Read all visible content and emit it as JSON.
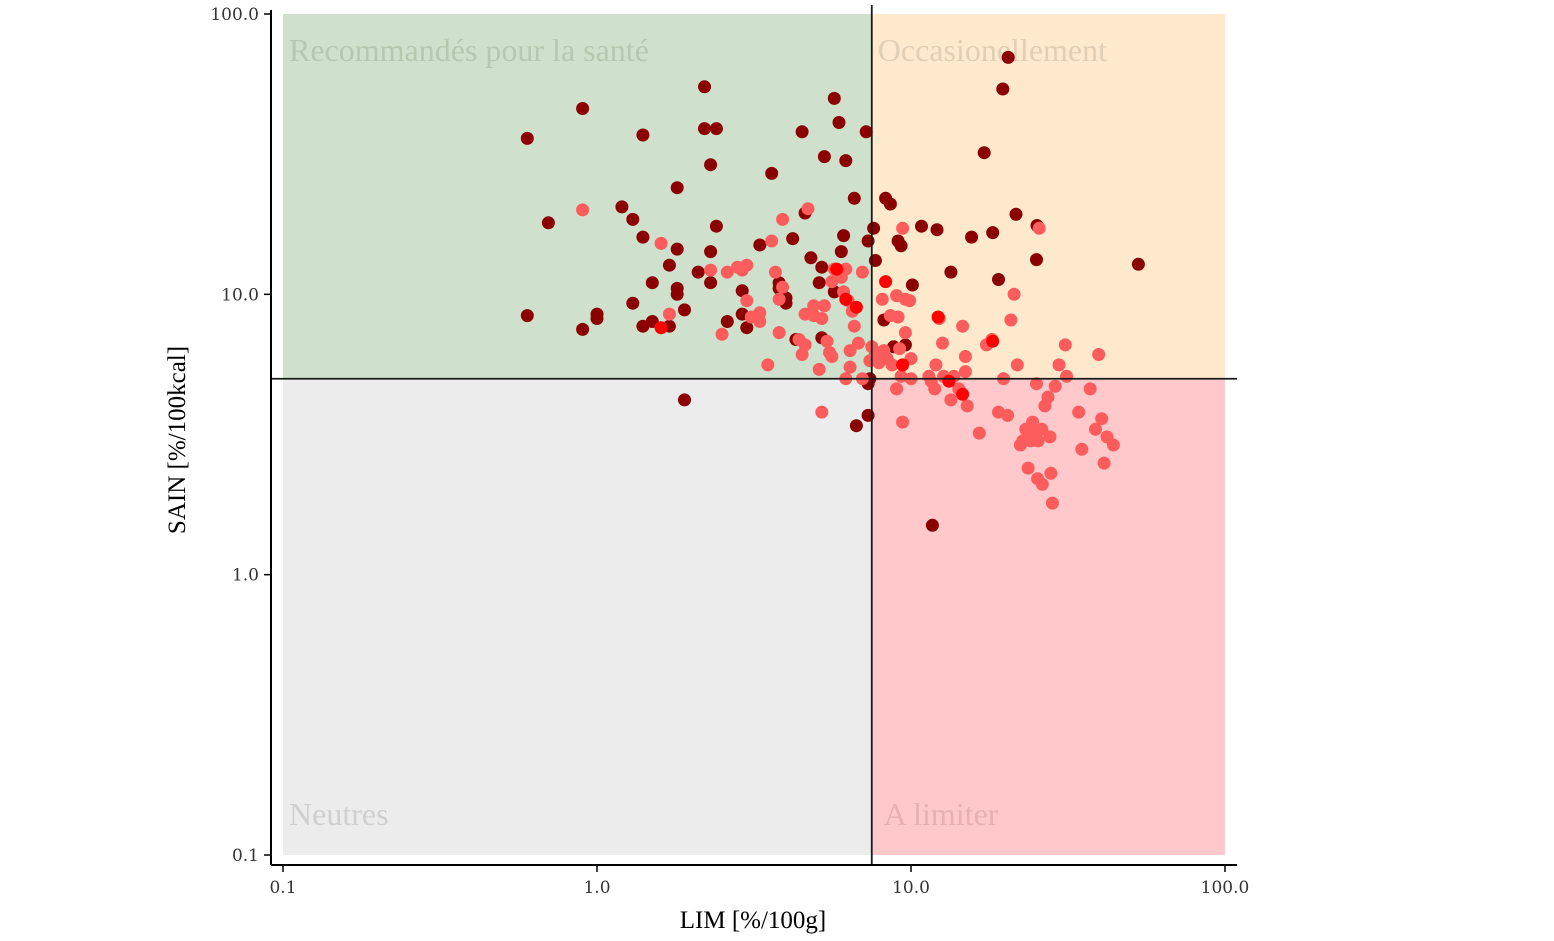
{
  "chart_data": {
    "type": "scatter",
    "xlabel": "LIM [%/100g]",
    "ylabel": "SAIN [%/100kcal]",
    "x_scale": "log",
    "y_scale": "log",
    "xlim": [
      0.1,
      100
    ],
    "ylim": [
      0.1,
      100
    ],
    "x_ticks": [
      "0.1",
      "1.0",
      "10.0",
      "100.0"
    ],
    "y_ticks": [
      "0.1",
      "1.0",
      "10.0",
      "100.0"
    ],
    "x_threshold": 7.5,
    "y_threshold": 5.0,
    "grid": false,
    "legend": "none",
    "quadrants": [
      {
        "label": "Recommandés pour la santé",
        "color": "#cfe1cc",
        "label_color": "#b5c9b1",
        "x_range": [
          0.1,
          7.5
        ],
        "y_range": [
          5.0,
          100
        ]
      },
      {
        "label": "Occasionellement",
        "color": "#ffe9cc",
        "label_color": "#e0cfb5",
        "x_range": [
          7.5,
          100
        ],
        "y_range": [
          5.0,
          100
        ]
      },
      {
        "label": "Neutres",
        "color": "#ececec",
        "label_color": "#cfcfcf",
        "x_range": [
          0.1,
          7.5
        ],
        "y_range": [
          0.1,
          5.0
        ]
      },
      {
        "label": "A limiter",
        "color": "#ffc9cb",
        "label_color": "#e8b0b0",
        "x_range": [
          7.5,
          100
        ],
        "y_range": [
          0.1,
          5.0
        ]
      }
    ],
    "series": [
      {
        "color": "#8b0000",
        "points": [
          [
            0.6,
            36
          ],
          [
            0.9,
            46
          ],
          [
            0.7,
            18
          ],
          [
            0.6,
            8.4
          ],
          [
            0.9,
            7.5
          ],
          [
            1.0,
            8.5
          ],
          [
            1.0,
            8.2
          ],
          [
            1.4,
            37
          ],
          [
            1.2,
            20.5
          ],
          [
            1.3,
            18.5
          ],
          [
            1.4,
            16
          ],
          [
            1.3,
            9.3
          ],
          [
            1.4,
            7.7
          ],
          [
            1.5,
            8.0
          ],
          [
            1.5,
            11
          ],
          [
            1.7,
            12.7
          ],
          [
            1.8,
            10.5
          ],
          [
            1.8,
            10
          ],
          [
            1.8,
            14.5
          ],
          [
            1.8,
            24
          ],
          [
            1.7,
            7.7
          ],
          [
            1.9,
            8.8
          ],
          [
            1.9,
            4.2
          ],
          [
            2.2,
            55
          ],
          [
            2.2,
            39
          ],
          [
            2.4,
            39
          ],
          [
            2.3,
            29
          ],
          [
            2.4,
            17.5
          ],
          [
            2.1,
            12
          ],
          [
            2.3,
            11
          ],
          [
            2.3,
            14.2
          ],
          [
            2.6,
            8.0
          ],
          [
            2.9,
            10.3
          ],
          [
            2.9,
            8.5
          ],
          [
            3.0,
            7.6
          ],
          [
            3.3,
            15
          ],
          [
            3.6,
            27
          ],
          [
            3.8,
            11
          ],
          [
            3.8,
            10.5
          ],
          [
            4.0,
            9.7
          ],
          [
            4.0,
            9.3
          ],
          [
            4.2,
            15.8
          ],
          [
            4.3,
            6.9
          ],
          [
            4.5,
            38
          ],
          [
            4.6,
            19.5
          ],
          [
            4.8,
            13.5
          ],
          [
            5.1,
            11
          ],
          [
            5.2,
            12.5
          ],
          [
            5.3,
            31
          ],
          [
            5.2,
            7
          ],
          [
            5.7,
            50
          ],
          [
            5.9,
            41
          ],
          [
            6.1,
            16.2
          ],
          [
            6.0,
            14.2
          ],
          [
            6.2,
            30
          ],
          [
            5.7,
            10.2
          ],
          [
            6.6,
            22
          ],
          [
            7.2,
            38
          ],
          [
            7.6,
            17.2
          ],
          [
            7.3,
            15.5
          ],
          [
            7.7,
            13.2
          ],
          [
            7.4,
            5.0
          ],
          [
            7.3,
            4.8
          ],
          [
            7.3,
            3.7
          ],
          [
            6.7,
            3.4
          ],
          [
            8.3,
            22
          ],
          [
            8.6,
            21
          ],
          [
            8.2,
            8.1
          ],
          [
            9.1,
            15.5
          ],
          [
            9.3,
            14.9
          ],
          [
            10.1,
            10.8
          ],
          [
            10.8,
            17.5
          ],
          [
            12.1,
            17
          ],
          [
            13.4,
            12
          ],
          [
            15.6,
            16
          ],
          [
            17.1,
            32
          ],
          [
            18.2,
            16.6
          ],
          [
            19.0,
            11.3
          ],
          [
            19.6,
            54
          ],
          [
            20.4,
            70
          ],
          [
            21.6,
            19.3
          ],
          [
            25.2,
            17.6
          ],
          [
            25.1,
            13.3
          ],
          [
            53.0,
            12.8
          ],
          [
            8.8,
            6.5
          ],
          [
            9.6,
            6.6
          ],
          [
            11.7,
            1.5
          ]
        ]
      },
      {
        "color": "#fd5c5c",
        "points": [
          [
            0.9,
            20
          ],
          [
            1.6,
            15.2
          ],
          [
            1.6,
            7.6
          ],
          [
            1.7,
            8.5
          ],
          [
            2.3,
            12.2
          ],
          [
            2.6,
            12
          ],
          [
            2.5,
            7.2
          ],
          [
            2.8,
            12.5
          ],
          [
            2.9,
            12.2
          ],
          [
            3.0,
            12.7
          ],
          [
            3.0,
            9.5
          ],
          [
            3.1,
            8.3
          ],
          [
            3.3,
            8.0
          ],
          [
            3.3,
            8.6
          ],
          [
            3.5,
            5.6
          ],
          [
            3.7,
            12
          ],
          [
            3.8,
            9.6
          ],
          [
            3.9,
            10.6
          ],
          [
            3.6,
            15.5
          ],
          [
            3.8,
            7.3
          ],
          [
            3.9,
            18.5
          ],
          [
            4.4,
            6.9
          ],
          [
            4.5,
            6.1
          ],
          [
            4.6,
            6.6
          ],
          [
            4.6,
            8.5
          ],
          [
            4.9,
            8.4
          ],
          [
            4.7,
            20.2
          ],
          [
            4.9,
            9.1
          ],
          [
            5.1,
            5.4
          ],
          [
            5.2,
            3.8
          ],
          [
            5.2,
            8.2
          ],
          [
            5.3,
            9.1
          ],
          [
            5.5,
            6.2
          ],
          [
            5.6,
            6.0
          ],
          [
            5.4,
            6.8
          ],
          [
            5.6,
            11.1
          ],
          [
            5.7,
            12.3
          ],
          [
            6.0,
            11.5
          ],
          [
            6.1,
            10.2
          ],
          [
            6.3,
            9.5
          ],
          [
            6.2,
            12.3
          ],
          [
            6.5,
            8.7
          ],
          [
            6.4,
            6.3
          ],
          [
            6.2,
            5.0
          ],
          [
            6.4,
            5.5
          ],
          [
            6.6,
            7.7
          ],
          [
            6.8,
            6.7
          ],
          [
            7.0,
            12
          ],
          [
            7.0,
            5.0
          ],
          [
            7.5,
            6.5
          ],
          [
            7.4,
            5.8
          ],
          [
            7.7,
            6.2
          ],
          [
            7.9,
            5.7
          ],
          [
            8.1,
            9.6
          ],
          [
            8.2,
            6.3
          ],
          [
            8.4,
            5.9
          ],
          [
            8.6,
            8.4
          ],
          [
            8.7,
            5.6
          ],
          [
            9.0,
            9.9
          ],
          [
            9.1,
            8.3
          ],
          [
            9.2,
            6.4
          ],
          [
            9.3,
            5.1
          ],
          [
            9.4,
            17.2
          ],
          [
            9.6,
            9.6
          ],
          [
            9.6,
            7.3
          ],
          [
            9.9,
            9.5
          ],
          [
            10.0,
            5.0
          ],
          [
            10.0,
            5.9
          ],
          [
            9.4,
            3.5
          ],
          [
            9.0,
            4.6
          ],
          [
            11.4,
            5.1
          ],
          [
            11.6,
            4.9
          ],
          [
            11.9,
            4.6
          ],
          [
            12.0,
            5.6
          ],
          [
            12.3,
            8.2
          ],
          [
            12.6,
            6.7
          ],
          [
            12.7,
            5.1
          ],
          [
            13.4,
            4.2
          ],
          [
            13.7,
            5.1
          ],
          [
            14.2,
            4.6
          ],
          [
            14.6,
            7.7
          ],
          [
            14.9,
            6.0
          ],
          [
            14.9,
            5.3
          ],
          [
            15.1,
            4.0
          ],
          [
            16.5,
            3.2
          ],
          [
            17.4,
            6.6
          ],
          [
            18.1,
            6.9
          ],
          [
            19.0,
            3.8
          ],
          [
            19.7,
            5.0
          ],
          [
            20.3,
            3.7
          ],
          [
            20.8,
            8.1
          ],
          [
            21.3,
            10
          ],
          [
            21.8,
            5.6
          ],
          [
            22.3,
            2.9
          ],
          [
            22.7,
            3.0
          ],
          [
            23.2,
            3.3
          ],
          [
            23.6,
            2.4
          ],
          [
            24.1,
            3.0
          ],
          [
            24.6,
            3.2
          ],
          [
            24.4,
            3.5
          ],
          [
            25.4,
            3.0
          ],
          [
            25.3,
            2.2
          ],
          [
            25.1,
            4.8
          ],
          [
            26.1,
            3.3
          ],
          [
            26.2,
            2.1
          ],
          [
            26.7,
            4.0
          ],
          [
            27.3,
            4.3
          ],
          [
            27.7,
            3.1
          ],
          [
            27.9,
            2.3
          ],
          [
            28.2,
            1.8
          ],
          [
            28.8,
            4.7
          ],
          [
            29.6,
            5.6
          ],
          [
            31.3,
            5.1
          ],
          [
            31.0,
            6.6
          ],
          [
            34.2,
            3.8
          ],
          [
            35.0,
            2.8
          ],
          [
            37.2,
            4.6
          ],
          [
            38.7,
            3.3
          ],
          [
            39.6,
            6.1
          ],
          [
            40.5,
            3.6
          ],
          [
            41.2,
            2.5
          ],
          [
            42.1,
            3.1
          ],
          [
            44.1,
            2.9
          ],
          [
            25.6,
            17.2
          ]
        ]
      },
      {
        "color": "#ff0000",
        "points": [
          [
            1.6,
            7.6
          ],
          [
            5.8,
            12.3
          ],
          [
            6.2,
            9.6
          ],
          [
            6.7,
            9.0
          ],
          [
            8.3,
            11.1
          ],
          [
            9.4,
            5.6
          ],
          [
            12.2,
            8.3
          ],
          [
            13.2,
            4.9
          ],
          [
            14.6,
            4.4
          ],
          [
            18.2,
            6.8
          ]
        ]
      }
    ]
  }
}
